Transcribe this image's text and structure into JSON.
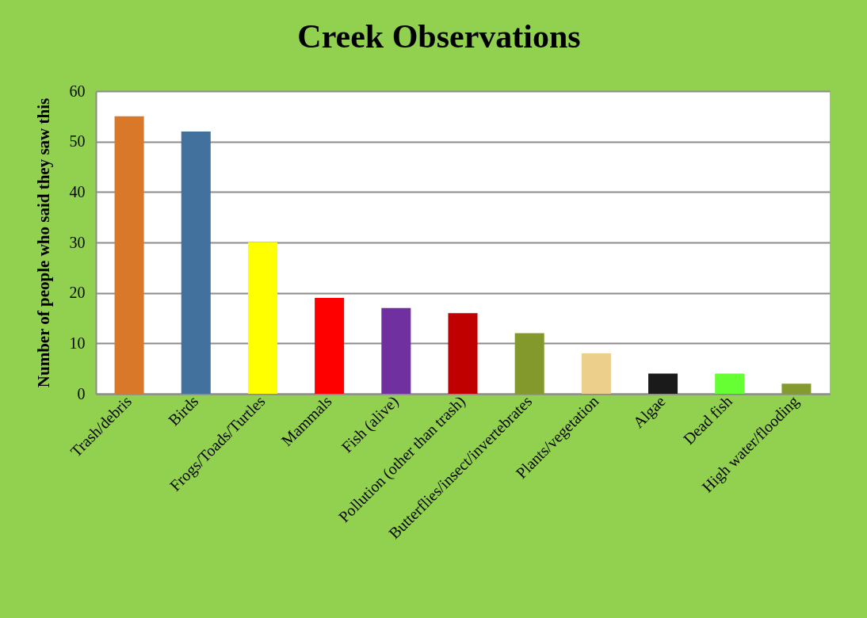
{
  "chart_data": {
    "type": "bar",
    "title": "Creek Observations",
    "ylabel": "Number of people who said they saw this",
    "categories": [
      "Trash/debris",
      "Birds",
      "Frogs/Toads/Turtles",
      "Mammals",
      "Fish (alive)",
      "Pollution (other than trash)",
      "Butterflies/insect/invertebrates",
      "Plants/vegetation",
      "Algae",
      "Dead fish",
      "High water/flooding"
    ],
    "values": [
      55,
      52,
      30,
      19,
      17,
      16,
      12,
      8,
      4,
      4,
      2
    ],
    "colors": [
      "#d97828",
      "#41719c",
      "#ffff00",
      "#ff0000",
      "#7030a0",
      "#c00000",
      "#84992c",
      "#ebcf8b",
      "#1a1a1a",
      "#66ff33",
      "#849a30"
    ],
    "ylim": [
      0,
      60
    ],
    "yticks": [
      0,
      10,
      20,
      30,
      40,
      50,
      60
    ],
    "grid": "y"
  }
}
